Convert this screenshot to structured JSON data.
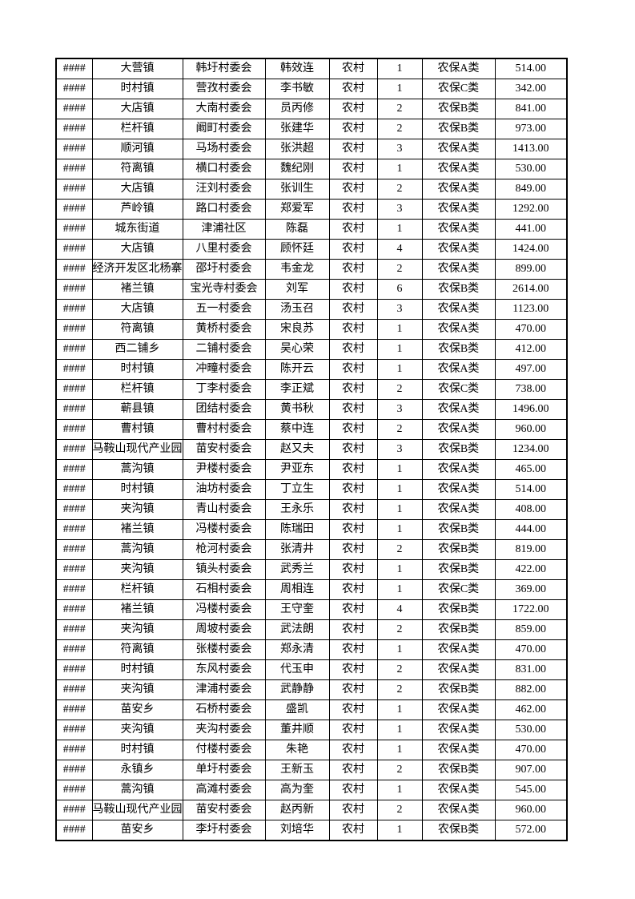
{
  "page": {
    "background_color": "#ffffff",
    "border_color": "#000000",
    "overflow_marker": "####"
  },
  "table": {
    "column_keys": [
      "overflow-marker",
      "township",
      "village-committee",
      "person-name",
      "household-type",
      "person-count",
      "insurance-category",
      "amount"
    ],
    "rows": [
      [
        "####",
        "大营镇",
        "韩圩村委会",
        "韩效连",
        "农村",
        "1",
        "农保A类",
        "514.00"
      ],
      [
        "####",
        "时村镇",
        "营孜村委会",
        "李书敏",
        "农村",
        "1",
        "农保C类",
        "342.00"
      ],
      [
        "####",
        "大店镇",
        "大南村委会",
        "员丙修",
        "农村",
        "2",
        "农保B类",
        "841.00"
      ],
      [
        "####",
        "栏杆镇",
        "阚町村委会",
        "张建华",
        "农村",
        "2",
        "农保B类",
        "973.00"
      ],
      [
        "####",
        "顺河镇",
        "马场村委会",
        "张洪超",
        "农村",
        "3",
        "农保A类",
        "1413.00"
      ],
      [
        "####",
        "符离镇",
        "横口村委会",
        "魏纪刚",
        "农村",
        "1",
        "农保A类",
        "530.00"
      ],
      [
        "####",
        "大店镇",
        "汪刘村委会",
        "张训生",
        "农村",
        "2",
        "农保A类",
        "849.00"
      ],
      [
        "####",
        "芦岭镇",
        "路口村委会",
        "郑爱军",
        "农村",
        "3",
        "农保A类",
        "1292.00"
      ],
      [
        "####",
        "城东街道",
        "津浦社区",
        "陈磊",
        "农村",
        "1",
        "农保A类",
        "441.00"
      ],
      [
        "####",
        "大店镇",
        "八里村委会",
        "顾怀廷",
        "农村",
        "4",
        "农保A类",
        "1424.00"
      ],
      [
        "####",
        "经济开发区北杨寨",
        "邵圩村委会",
        "韦金龙",
        "农村",
        "2",
        "农保A类",
        "899.00"
      ],
      [
        "####",
        "褚兰镇",
        "宝光寺村委会",
        "刘军",
        "农村",
        "6",
        "农保B类",
        "2614.00"
      ],
      [
        "####",
        "大店镇",
        "五一村委会",
        "汤玉召",
        "农村",
        "3",
        "农保A类",
        "1123.00"
      ],
      [
        "####",
        "符离镇",
        "黄桥村委会",
        "宋良苏",
        "农村",
        "1",
        "农保A类",
        "470.00"
      ],
      [
        "####",
        "西二铺乡",
        "二铺村委会",
        "吴心荣",
        "农村",
        "1",
        "农保B类",
        "412.00"
      ],
      [
        "####",
        "时村镇",
        "冲疃村委会",
        "陈开云",
        "农村",
        "1",
        "农保A类",
        "497.00"
      ],
      [
        "####",
        "栏杆镇",
        "丁李村委会",
        "李正斌",
        "农村",
        "2",
        "农保C类",
        "738.00"
      ],
      [
        "####",
        "蕲县镇",
        "团结村委会",
        "黄书秋",
        "农村",
        "3",
        "农保A类",
        "1496.00"
      ],
      [
        "####",
        "曹村镇",
        "曹村村委会",
        "蔡中连",
        "农村",
        "2",
        "农保A类",
        "960.00"
      ],
      [
        "####",
        "马鞍山现代产业园",
        "苗安村委会",
        "赵又夫",
        "农村",
        "3",
        "农保B类",
        "1234.00"
      ],
      [
        "####",
        "蒿沟镇",
        "尹楼村委会",
        "尹亚东",
        "农村",
        "1",
        "农保A类",
        "465.00"
      ],
      [
        "####",
        "时村镇",
        "油坊村委会",
        "丁立生",
        "农村",
        "1",
        "农保A类",
        "514.00"
      ],
      [
        "####",
        "夹沟镇",
        "青山村委会",
        "王永乐",
        "农村",
        "1",
        "农保A类",
        "408.00"
      ],
      [
        "####",
        "褚兰镇",
        "冯楼村委会",
        "陈瑞田",
        "农村",
        "1",
        "农保B类",
        "444.00"
      ],
      [
        "####",
        "蒿沟镇",
        "枪河村委会",
        "张清井",
        "农村",
        "2",
        "农保B类",
        "819.00"
      ],
      [
        "####",
        "夹沟镇",
        "镇头村委会",
        "武秀兰",
        "农村",
        "1",
        "农保B类",
        "422.00"
      ],
      [
        "####",
        "栏杆镇",
        "石相村委会",
        "周相连",
        "农村",
        "1",
        "农保C类",
        "369.00"
      ],
      [
        "####",
        "褚兰镇",
        "冯楼村委会",
        "王守奎",
        "农村",
        "4",
        "农保B类",
        "1722.00"
      ],
      [
        "####",
        "夹沟镇",
        "周坡村委会",
        "武法朗",
        "农村",
        "2",
        "农保B类",
        "859.00"
      ],
      [
        "####",
        "符离镇",
        "张楼村委会",
        "郑永清",
        "农村",
        "1",
        "农保A类",
        "470.00"
      ],
      [
        "####",
        "时村镇",
        "东风村委会",
        "代玉申",
        "农村",
        "2",
        "农保A类",
        "831.00"
      ],
      [
        "####",
        "夹沟镇",
        "津浦村委会",
        "武静静",
        "农村",
        "2",
        "农保B类",
        "882.00"
      ],
      [
        "####",
        "苗安乡",
        "石桥村委会",
        "盛凯",
        "农村",
        "1",
        "农保A类",
        "462.00"
      ],
      [
        "####",
        "夹沟镇",
        "夹沟村委会",
        "董井顺",
        "农村",
        "1",
        "农保A类",
        "530.00"
      ],
      [
        "####",
        "时村镇",
        "付楼村委会",
        "朱艳",
        "农村",
        "1",
        "农保A类",
        "470.00"
      ],
      [
        "####",
        "永镇乡",
        "单圩村委会",
        "王新玉",
        "农村",
        "2",
        "农保B类",
        "907.00"
      ],
      [
        "####",
        "蒿沟镇",
        "高滩村委会",
        "高为奎",
        "农村",
        "1",
        "农保A类",
        "545.00"
      ],
      [
        "####",
        "马鞍山现代产业园",
        "苗安村委会",
        "赵丙新",
        "农村",
        "2",
        "农保A类",
        "960.00"
      ],
      [
        "####",
        "苗安乡",
        "李圩村委会",
        "刘培华",
        "农村",
        "1",
        "农保B类",
        "572.00"
      ]
    ]
  }
}
